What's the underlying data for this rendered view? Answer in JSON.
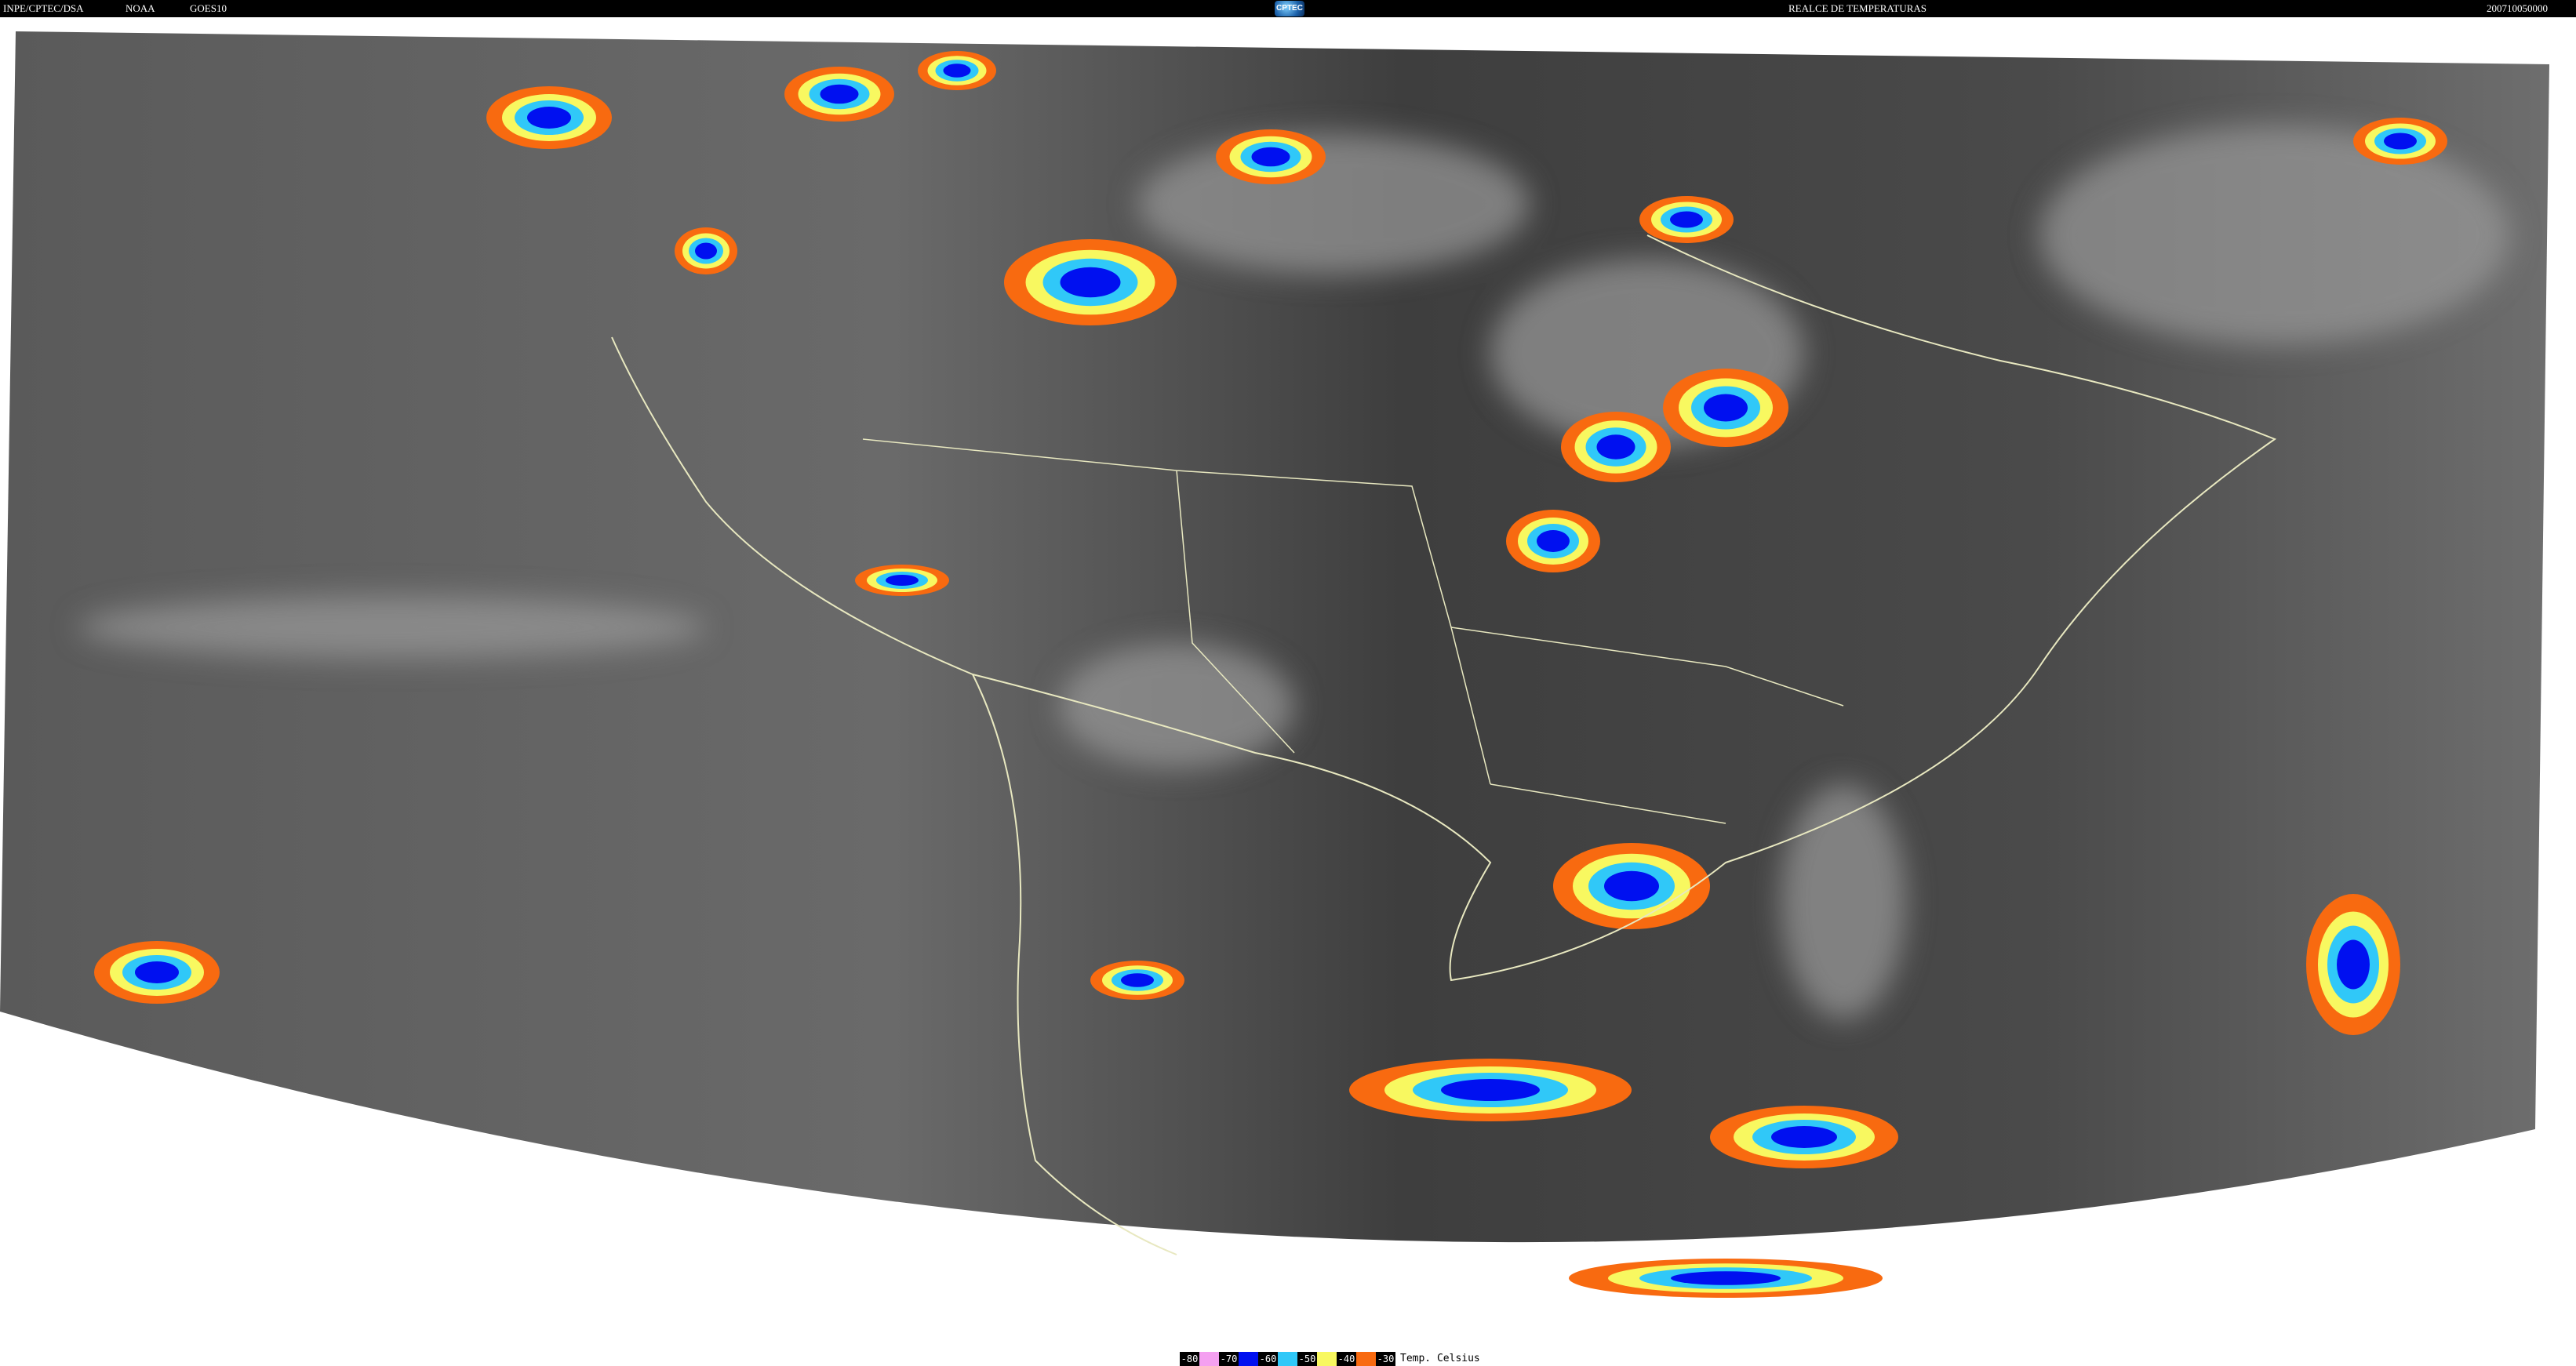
{
  "header": {
    "source": "INPE/CPTEC/DSA",
    "agency": "NOAA",
    "satellite": "GOES10",
    "logo_text": "CPTEC",
    "title": "REALCE DE TEMPERATURAS",
    "timestamp": "200710050000"
  },
  "legend": {
    "unit": "Temp. Celsius",
    "entries": [
      {
        "label": "-80",
        "color": "#f4a0f0"
      },
      {
        "label": "-70",
        "color": "#0010f0"
      },
      {
        "label": "-60",
        "color": "#30c8f8"
      },
      {
        "label": "-50",
        "color": "#f8f860"
      },
      {
        "label": "-40",
        "color": "#f86a10"
      }
    ],
    "last_label": "-30"
  },
  "map": {
    "type": "infrared satellite image",
    "region": "South America",
    "background_color": "#4a4a4a",
    "border_line_color": "#e8e8c0"
  }
}
